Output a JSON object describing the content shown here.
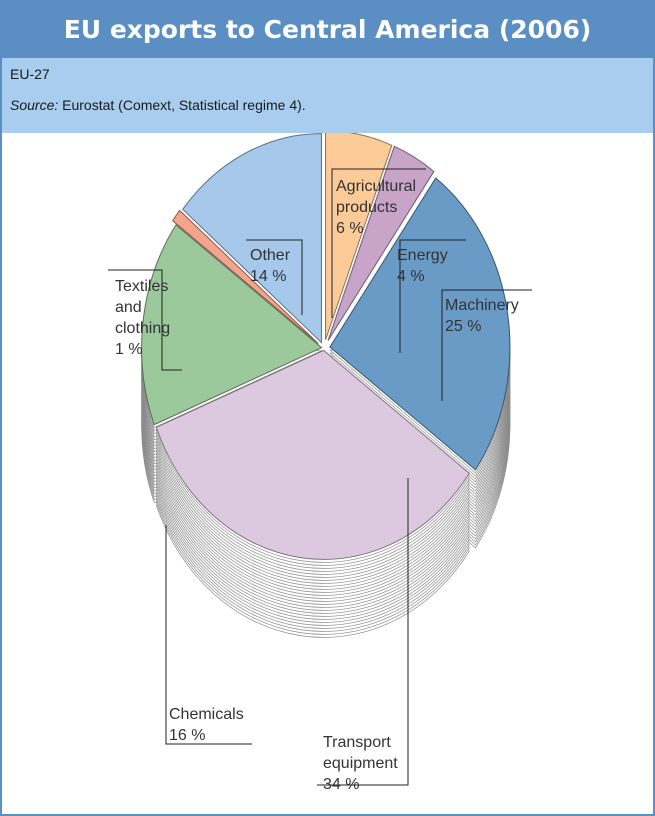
{
  "title": "EU exports to Central America (2006)",
  "subtitle": "EU-27",
  "source": {
    "label": "Source:",
    "text": "Eurostat (Comext, Statistical regime 4)."
  },
  "colors": {
    "title_bg": "#5b8fc4",
    "header_bg": "#a9cdee",
    "frame": "#5b8fc4"
  },
  "chart_data": {
    "type": "pie",
    "style": "3d-exploded",
    "unit": "%",
    "slices": [
      {
        "name": "Agricultural products",
        "label_lines": [
          "Agricultural",
          "products",
          "6 %"
        ],
        "value": 6,
        "color": "#fccb97"
      },
      {
        "name": "Energy",
        "label_lines": [
          "Energy",
          "4 %"
        ],
        "value": 4,
        "color": "#c9a4c9"
      },
      {
        "name": "Machinery",
        "label_lines": [
          "Machinery",
          "25 %"
        ],
        "value": 25,
        "color": "#6a9bc6"
      },
      {
        "name": "Transport equipment",
        "label_lines": [
          "Transport",
          "equipment",
          "34 %"
        ],
        "value": 34,
        "color": "#ddc9df"
      },
      {
        "name": "Chemicals",
        "label_lines": [
          "Chemicals",
          "16 %"
        ],
        "value": 16,
        "color": "#9cc99b"
      },
      {
        "name": "Textiles and clothing",
        "label_lines": [
          "Textiles",
          "and",
          "clothing",
          "1 %"
        ],
        "value": 1,
        "color": "#f2a48c"
      },
      {
        "name": "Other",
        "label_lines": [
          "Other",
          "14 %"
        ],
        "value": 14,
        "color": "#a6c8eb"
      }
    ]
  }
}
